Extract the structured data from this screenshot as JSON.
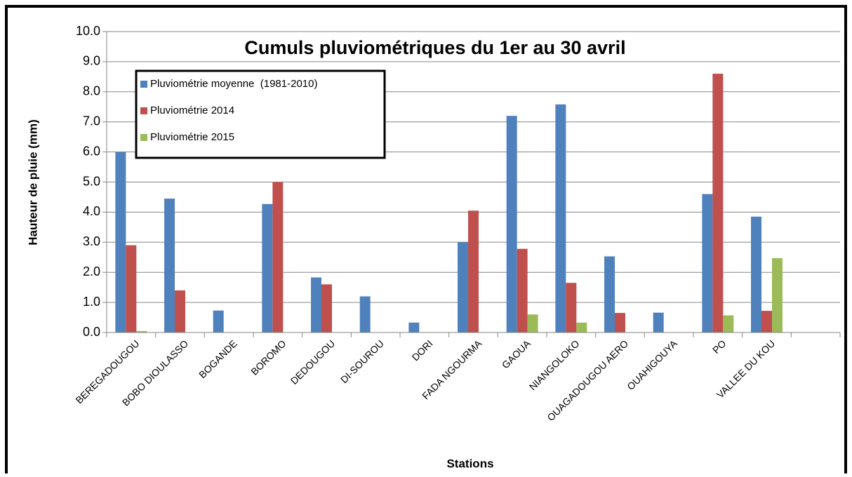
{
  "chart_data": {
    "type": "bar",
    "title": "Cumuls pluviométriques du 1er au 30 avril",
    "x_label": "Stations",
    "y_label": "Hauteur de pluie (mm)",
    "categories": [
      "BEREGADOUGOU",
      "BOBO DIOULASSO",
      "BOGANDE",
      "BOROMO",
      "DEDOUGOU",
      "DI-SOUROU",
      "DORI",
      "FADA NGOURMA",
      "GAOUA",
      "NIANGOLOKO",
      "OUAGADOUGOU AERO",
      "OUAHIGOUYA",
      "PO",
      "VALLEE DU KOU",
      null
    ],
    "series": [
      {
        "name": "Pluviométrie moyenne  (1981-2010)",
        "color": "#4f81bd",
        "values": [
          6.0,
          4.45,
          0.73,
          4.27,
          1.83,
          1.2,
          0.33,
          3.0,
          7.2,
          7.58,
          2.53,
          0.66,
          4.6,
          3.85,
          null
        ]
      },
      {
        "name": "Pluviométrie 2014",
        "color": "#c0504d",
        "values": [
          2.9,
          1.4,
          0,
          5.0,
          1.6,
          0,
          0,
          4.05,
          2.78,
          1.65,
          0.65,
          0,
          8.6,
          0.72,
          null
        ]
      },
      {
        "name": "Pluviométrie 2015",
        "color": "#9bbb59",
        "values": [
          0.05,
          0,
          0,
          0,
          0,
          0,
          0,
          0,
          0.6,
          0.33,
          0,
          0,
          0.57,
          2.47,
          null
        ]
      }
    ],
    "ylim": [
      0,
      10
    ],
    "yticks": [
      {
        "value": 0,
        "label": "0.0"
      },
      {
        "value": 1,
        "label": "1.0"
      },
      {
        "value": 2,
        "label": "2.0"
      },
      {
        "value": 3,
        "label": "3.0"
      },
      {
        "value": 4,
        "label": "4.0"
      },
      {
        "value": 5,
        "label": "5.0"
      },
      {
        "value": 6,
        "label": "6.0"
      },
      {
        "value": 7,
        "label": "7.0"
      },
      {
        "value": 8,
        "label": "8.0"
      },
      {
        "value": 9,
        "label": "9.0"
      },
      {
        "value": 10,
        "label": "10.0"
      }
    ],
    "grid": true,
    "legend": "upper left"
  }
}
